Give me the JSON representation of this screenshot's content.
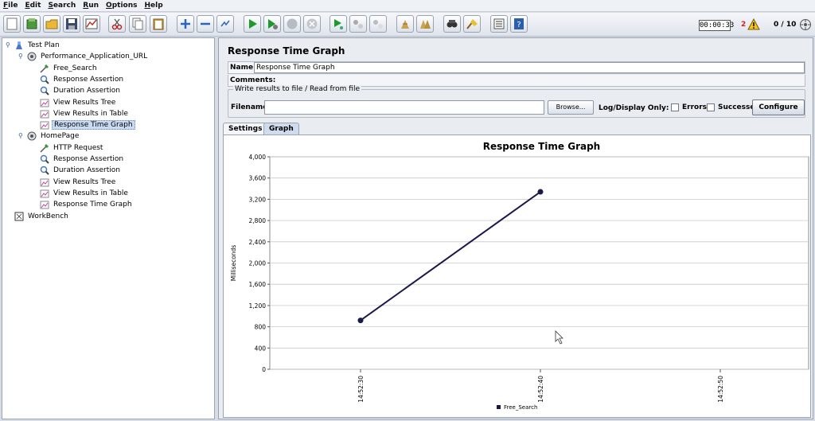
{
  "menu": [
    "File",
    "Edit",
    "Search",
    "Run",
    "Options",
    "Help"
  ],
  "status": {
    "timer": "00:00:33",
    "error_count": "2",
    "threads": "0 / 10"
  },
  "tree": {
    "nodes": [
      {
        "label": "Test Plan",
        "icon": "test-plan-icon",
        "level": 0,
        "expander": "minus"
      },
      {
        "label": "Performance_Application_URL",
        "icon": "thread-group-icon",
        "level": 1,
        "expander": "minus"
      },
      {
        "label": "Free_Search",
        "icon": "sampler-icon",
        "level": 2
      },
      {
        "label": "Response Assertion",
        "icon": "assertion-icon",
        "level": 2
      },
      {
        "label": "Duration Assertion",
        "icon": "assertion-icon",
        "level": 2
      },
      {
        "label": "View Results Tree",
        "icon": "listener-icon",
        "level": 2
      },
      {
        "label": "View Results in Table",
        "icon": "listener-icon",
        "level": 2
      },
      {
        "label": "Response Time Graph",
        "icon": "listener-icon",
        "level": 2,
        "selected": true
      },
      {
        "label": "HomePage",
        "icon": "thread-group-icon",
        "level": 1,
        "expander": "minus"
      },
      {
        "label": "HTTP Request",
        "icon": "sampler-icon",
        "level": 2
      },
      {
        "label": "Response Assertion",
        "icon": "assertion-icon",
        "level": 2
      },
      {
        "label": "Duration Assertion",
        "icon": "assertion-icon",
        "level": 2
      },
      {
        "label": "View Results Tree",
        "icon": "listener-icon",
        "level": 2
      },
      {
        "label": "View Results in Table",
        "icon": "listener-icon",
        "level": 2
      },
      {
        "label": "Response Time Graph",
        "icon": "listener-icon",
        "level": 2
      },
      {
        "label": "WorkBench",
        "icon": "workbench-icon",
        "level": 0
      }
    ]
  },
  "panel": {
    "title": "Response Time Graph",
    "name_label": "Name:",
    "name_value": "Response Time Graph",
    "comments_label": "Comments:",
    "file_legend": "Write results to file / Read from file",
    "filename_label": "Filename",
    "filename_value": "",
    "browse_label": "Browse...",
    "log_display_label": "Log/Display Only:",
    "errors_label": "Errors",
    "successes_label": "Successes",
    "configure_label": "Configure",
    "tabs": [
      "Settings",
      "Graph"
    ],
    "active_tab": "Graph"
  },
  "chart_data": {
    "type": "line",
    "title": "Response Time Graph",
    "ylabel": "Milliseconds",
    "xlabel": "",
    "ylim": [
      0,
      4000
    ],
    "yticks": [
      0,
      400,
      800,
      1200,
      1600,
      2000,
      2400,
      2800,
      3200,
      3600,
      4000
    ],
    "ytick_labels": [
      "0",
      "400",
      "800",
      "1,200",
      "1,600",
      "2,000",
      "2,400",
      "2,800",
      "3,200",
      "3,600",
      "4,000"
    ],
    "xticks": [
      "14:52:30",
      "14:52:40",
      "14:52:50"
    ],
    "series": [
      {
        "name": "Free_Search",
        "color": "#1a1a4a",
        "points": [
          {
            "x": "14:52:30",
            "y": 920
          },
          {
            "x": "14:52:40",
            "y": 3340
          }
        ]
      }
    ],
    "legend_position": "bottom",
    "grid": true
  }
}
